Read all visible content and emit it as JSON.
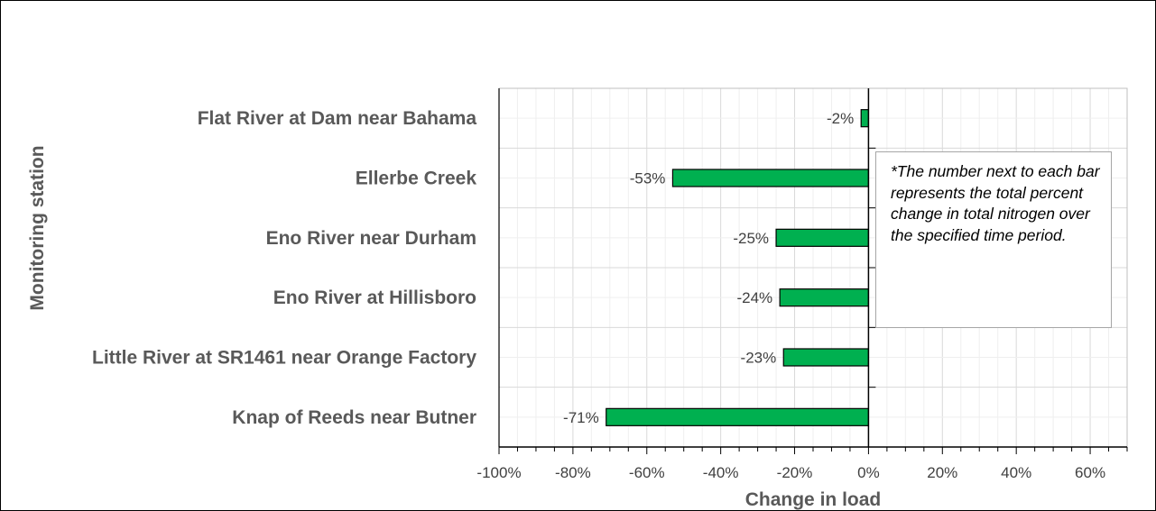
{
  "chart_data": {
    "type": "bar",
    "orientation": "horizontal",
    "categories": [
      "Flat River at Dam near Bahama",
      "Ellerbe Creek",
      "Eno River near Durham",
      "Eno River at Hillisboro",
      "Little River at SR1461 near Orange Factory",
      "Knap of Reeds near Butner"
    ],
    "values": [
      -2,
      -53,
      -25,
      -24,
      -23,
      -71
    ],
    "data_labels": [
      "-2%",
      "-53%",
      "-25%",
      "-24%",
      "-23%",
      "-71%"
    ],
    "xlabel": "Change in load",
    "ylabel": "Monitoring station",
    "xlim": [
      -100,
      70
    ],
    "xticks": [
      -100,
      -80,
      -60,
      -40,
      -20,
      0,
      20,
      40,
      60
    ],
    "xtick_labels": [
      "-100%",
      "-80%",
      "-60%",
      "-40%",
      "-20%",
      "0%",
      "20%",
      "40%",
      "60%"
    ],
    "grid": true,
    "bar_color": "#00b050",
    "note": "*The number next to each bar represents the total percent change in total nitrogen over the specified time period."
  }
}
